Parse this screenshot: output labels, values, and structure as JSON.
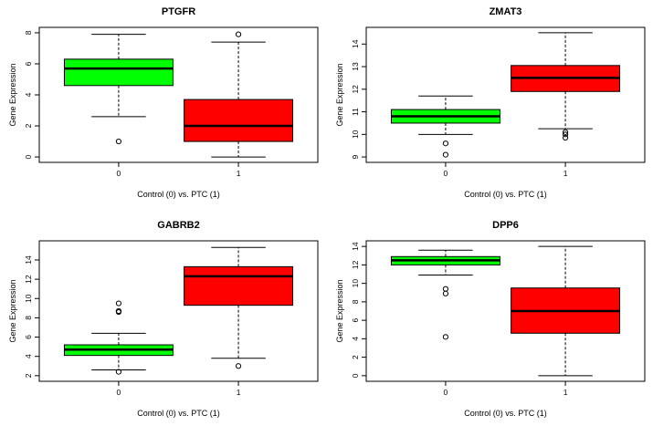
{
  "chart_data": [
    {
      "type": "boxplot",
      "title": "PTGFR",
      "xlabel": "Control (0) vs. PTC (1)",
      "ylabel": "Gene Expression",
      "ylim": [
        0,
        8
      ],
      "yticks": [
        0,
        2,
        4,
        6,
        8
      ],
      "categories": [
        "0",
        "1"
      ],
      "boxes": [
        {
          "group": "0",
          "min": 2.6,
          "q1": 4.6,
          "median": 5.7,
          "q3": 6.3,
          "max": 7.9,
          "outliers": [
            1.0
          ],
          "color": "#00ff00"
        },
        {
          "group": "1",
          "min": 0.0,
          "q1": 1.0,
          "median": 2.0,
          "q3": 3.7,
          "max": 7.4,
          "outliers": [
            7.9
          ],
          "color": "#ff0000"
        }
      ]
    },
    {
      "type": "boxplot",
      "title": "ZMAT3",
      "xlabel": "Control (0) vs. PTC (1)",
      "ylabel": "Gene Expression",
      "ylim": [
        9,
        14.5
      ],
      "yticks": [
        9,
        10,
        11,
        12,
        13,
        14
      ],
      "categories": [
        "0",
        "1"
      ],
      "boxes": [
        {
          "group": "0",
          "min": 10.0,
          "q1": 10.5,
          "median": 10.8,
          "q3": 11.1,
          "max": 11.7,
          "outliers": [
            9.6,
            9.1
          ],
          "color": "#00ff00"
        },
        {
          "group": "1",
          "min": 10.25,
          "q1": 11.9,
          "median": 12.5,
          "q3": 13.05,
          "max": 14.5,
          "outliers": [
            10.1,
            10.0,
            9.85
          ],
          "color": "#ff0000"
        }
      ]
    },
    {
      "type": "boxplot",
      "title": "GABRB2",
      "xlabel": "Control (0) vs. PTC (1)",
      "ylabel": "Gene Expression",
      "ylim": [
        2,
        15.4
      ],
      "yticks": [
        2,
        4,
        6,
        8,
        10,
        12,
        14
      ],
      "categories": [
        "0",
        "1"
      ],
      "boxes": [
        {
          "group": "0",
          "min": 2.6,
          "q1": 4.1,
          "median": 4.7,
          "q3": 5.2,
          "max": 6.4,
          "outliers": [
            9.5,
            8.7,
            8.6,
            2.4
          ],
          "color": "#00ff00"
        },
        {
          "group": "1",
          "min": 3.8,
          "q1": 9.3,
          "median": 12.3,
          "q3": 13.3,
          "max": 15.3,
          "outliers": [
            3.0
          ],
          "color": "#ff0000"
        }
      ]
    },
    {
      "type": "boxplot",
      "title": "DPP6",
      "xlabel": "Control (0) vs. PTC (1)",
      "ylabel": "Gene Expression",
      "ylim": [
        0,
        14
      ],
      "yticks": [
        0,
        2,
        4,
        6,
        8,
        10,
        12,
        14
      ],
      "categories": [
        "0",
        "1"
      ],
      "boxes": [
        {
          "group": "0",
          "min": 10.9,
          "q1": 12.0,
          "median": 12.5,
          "q3": 12.9,
          "max": 13.6,
          "outliers": [
            9.4,
            8.9,
            4.2
          ],
          "color": "#00ff00"
        },
        {
          "group": "1",
          "min": 0.0,
          "q1": 4.6,
          "median": 7.0,
          "q3": 9.5,
          "max": 14.0,
          "outliers": [],
          "color": "#ff0000"
        }
      ]
    }
  ]
}
